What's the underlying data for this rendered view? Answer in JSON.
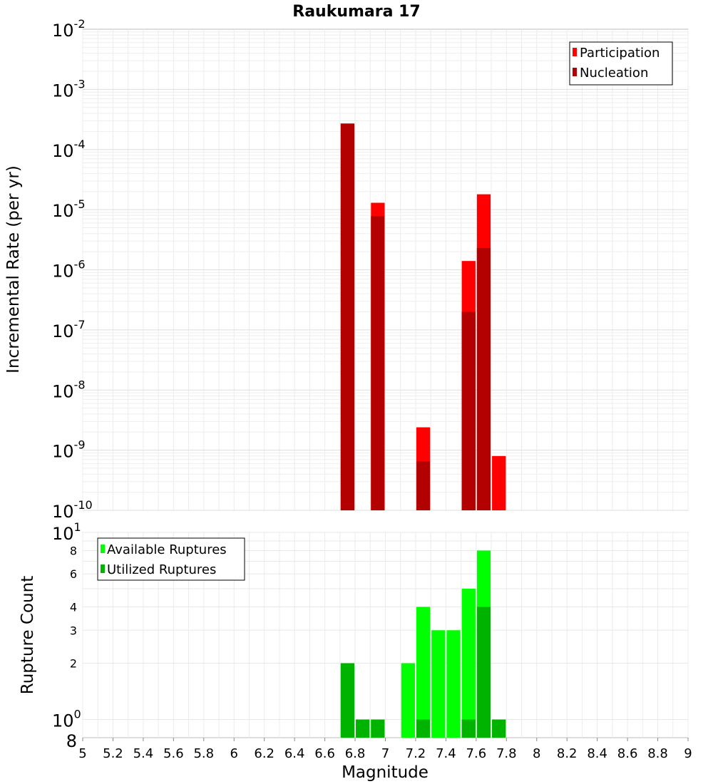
{
  "chart_data": [
    {
      "type": "bar",
      "title": "Raukumara 17",
      "ylabel": "Incremental Rate (per yr)",
      "yscale": "log",
      "ylim": [
        1e-10,
        0.01
      ],
      "ytick_exponents": [
        -10,
        -9,
        -8,
        -7,
        -6,
        -5,
        -4,
        -3,
        -2
      ],
      "x": [
        6.75,
        6.95,
        7.25,
        7.55,
        7.65,
        7.75
      ],
      "series": [
        {
          "name": "Participation",
          "color": "#ff0000",
          "values": [
            0.00027,
            1.3e-05,
            2.4e-09,
            1.4e-06,
            1.8e-05,
            8e-10
          ]
        },
        {
          "name": "Nucleation",
          "color": "#b30000",
          "values": [
            0.00027,
            7.8e-06,
            6.5e-10,
            2e-07,
            2.3e-06,
            null
          ]
        }
      ],
      "legend_position": "top-right",
      "grid": true
    },
    {
      "type": "bar",
      "ylabel": "Rupture Count",
      "xlabel": "Magnitude",
      "yscale": "log",
      "ylim": [
        0.8,
        10
      ],
      "ytick_labels": [
        "2",
        "3",
        "4",
        "6",
        "8"
      ],
      "x": [
        6.75,
        6.85,
        6.95,
        7.15,
        7.25,
        7.35,
        7.45,
        7.55,
        7.65,
        7.75
      ],
      "xlim": [
        5,
        9
      ],
      "xticks": [
        "5",
        "5.2",
        "5.4",
        "5.6",
        "5.8",
        "6",
        "6.2",
        "6.4",
        "6.6",
        "6.8",
        "7",
        "7.2",
        "7.4",
        "7.6",
        "7.8",
        "8",
        "8.2",
        "8.4",
        "8.6",
        "8.8",
        "9"
      ],
      "series": [
        {
          "name": "Available Ruptures",
          "color": "#00ff00",
          "values": [
            2,
            1,
            1,
            2,
            4,
            3,
            3,
            5,
            8,
            1
          ]
        },
        {
          "name": "Utilized Ruptures",
          "color": "#00b300",
          "values": [
            2,
            1,
            1,
            null,
            1,
            null,
            null,
            1,
            4,
            1
          ]
        }
      ],
      "legend_position": "top-left",
      "grid": true
    }
  ]
}
